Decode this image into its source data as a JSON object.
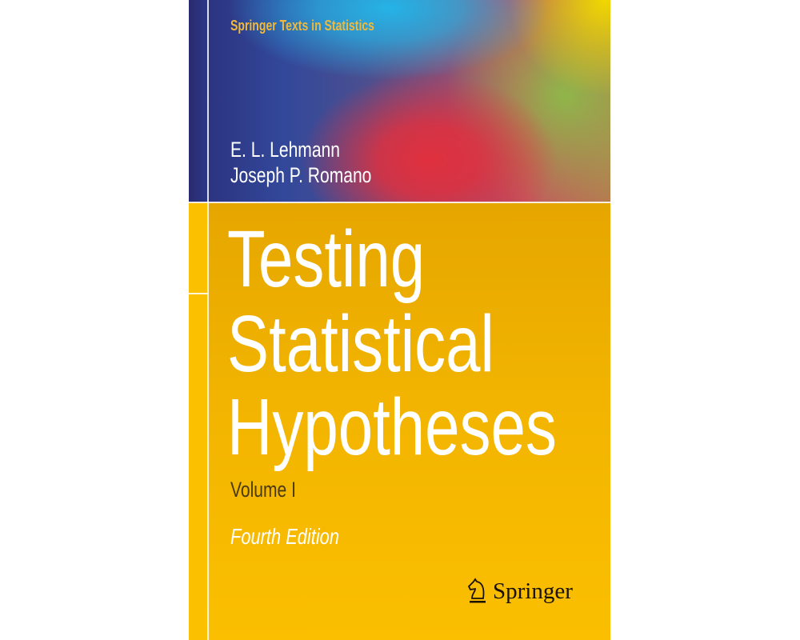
{
  "cover": {
    "series": "Springer Texts in Statistics",
    "authors": [
      "E. L. Lehmann",
      "Joseph P. Romano"
    ],
    "title_lines": [
      "Testing",
      "Statistical",
      "Hypotheses"
    ],
    "volume": "Volume I",
    "edition": "Fourth Edition",
    "publisher": "Springer",
    "publisher_logo_icon": "knight-horse-icon",
    "colors": {
      "yellow": "#fbbf00",
      "series_text": "#f0b93a",
      "title_text": "#ffffff"
    }
  }
}
